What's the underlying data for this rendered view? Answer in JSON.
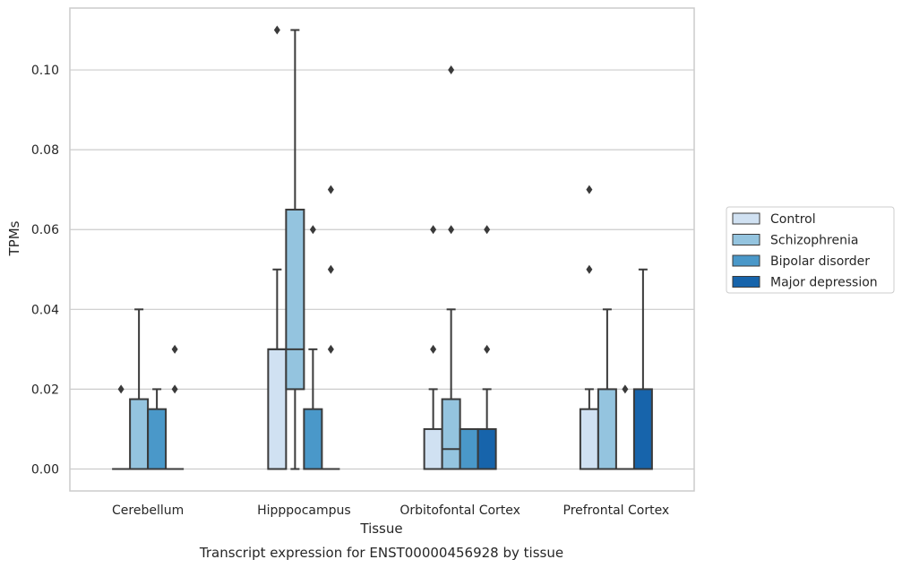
{
  "chart_data": {
    "type": "box",
    "title": "",
    "caption": "Transcript expression for ENST00000456928 by tissue",
    "xlabel": "Tissue",
    "ylabel": "TPMs",
    "ylim": [
      -0.0055,
      0.1155
    ],
    "yticks": [
      "0.00",
      "0.02",
      "0.04",
      "0.06",
      "0.08",
      "0.10"
    ],
    "grid": true,
    "legend_position": "right",
    "categories": [
      "Cerebellum",
      "Hipppocampus",
      "Orbitofontal Cortex",
      "Prefrontal Cortex"
    ],
    "series": [
      {
        "name": "Control",
        "color": "#d0e1f2",
        "boxes": [
          {
            "q1": 0.0,
            "median": 0.0,
            "q3": 0.0,
            "whisker_low": 0.0,
            "whisker_high": 0.0,
            "outliers": [
              0.02
            ]
          },
          {
            "q1": 0.0,
            "median": 0.03,
            "q3": 0.03,
            "whisker_low": 0.0,
            "whisker_high": 0.05,
            "outliers": [
              0.11
            ]
          },
          {
            "q1": 0.0,
            "median": 0.0,
            "q3": 0.01,
            "whisker_low": 0.0,
            "whisker_high": 0.02,
            "outliers": [
              0.03,
              0.06
            ]
          },
          {
            "q1": 0.0,
            "median": 0.0,
            "q3": 0.015,
            "whisker_low": 0.0,
            "whisker_high": 0.02,
            "outliers": [
              0.05,
              0.07
            ]
          }
        ]
      },
      {
        "name": "Schizophrenia",
        "color": "#94c4df",
        "boxes": [
          {
            "q1": 0.0,
            "median": 0.0,
            "q3": 0.0175,
            "whisker_low": 0.0,
            "whisker_high": 0.04,
            "outliers": []
          },
          {
            "q1": 0.02,
            "median": 0.03,
            "q3": 0.065,
            "whisker_low": 0.0,
            "whisker_high": 0.11,
            "outliers": []
          },
          {
            "q1": 0.0,
            "median": 0.005,
            "q3": 0.0175,
            "whisker_low": 0.0,
            "whisker_high": 0.04,
            "outliers": [
              0.06,
              0.1
            ]
          },
          {
            "q1": 0.0,
            "median": 0.0,
            "q3": 0.02,
            "whisker_low": 0.0,
            "whisker_high": 0.04,
            "outliers": []
          }
        ]
      },
      {
        "name": "Bipolar disorder",
        "color": "#4a98c9",
        "boxes": [
          {
            "q1": 0.0,
            "median": 0.0,
            "q3": 0.015,
            "whisker_low": 0.0,
            "whisker_high": 0.02,
            "outliers": []
          },
          {
            "q1": 0.0,
            "median": 0.0,
            "q3": 0.015,
            "whisker_low": 0.0,
            "whisker_high": 0.03,
            "outliers": [
              0.06
            ]
          },
          {
            "q1": 0.0,
            "median": 0.0,
            "q3": 0.01,
            "whisker_low": 0.0,
            "whisker_high": 0.01,
            "outliers": []
          },
          {
            "q1": 0.0,
            "median": 0.0,
            "q3": 0.0,
            "whisker_low": 0.0,
            "whisker_high": 0.0,
            "outliers": [
              0.02
            ]
          }
        ]
      },
      {
        "name": "Major depression",
        "color": "#1764ab",
        "boxes": [
          {
            "q1": 0.0,
            "median": 0.0,
            "q3": 0.0,
            "whisker_low": 0.0,
            "whisker_high": 0.0,
            "outliers": [
              0.02,
              0.03
            ]
          },
          {
            "q1": 0.0,
            "median": 0.0,
            "q3": 0.0,
            "whisker_low": 0.0,
            "whisker_high": 0.0,
            "outliers": [
              0.03,
              0.05,
              0.07
            ]
          },
          {
            "q1": 0.0,
            "median": 0.0,
            "q3": 0.01,
            "whisker_low": 0.0,
            "whisker_high": 0.02,
            "outliers": [
              0.03,
              0.06
            ]
          },
          {
            "q1": 0.0,
            "median": 0.0,
            "q3": 0.02,
            "whisker_low": 0.0,
            "whisker_high": 0.05,
            "outliers": []
          }
        ]
      }
    ]
  }
}
